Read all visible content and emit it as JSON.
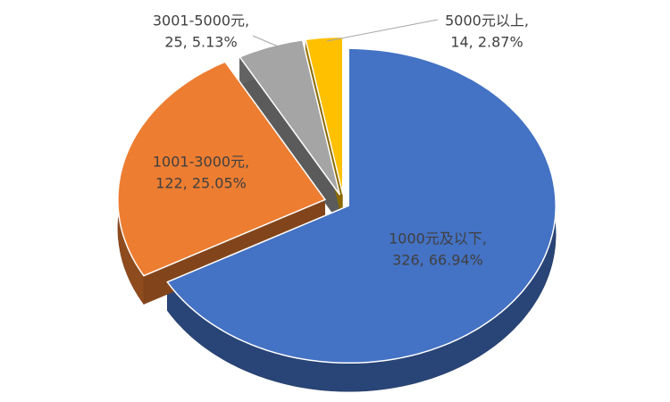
{
  "chart_data": {
    "type": "pie3d",
    "categories": [
      "1000元及以下,",
      "1001-3000元,",
      "3001-5000元,",
      "5000元以上,"
    ],
    "values": [
      326,
      122,
      25,
      14
    ],
    "value_labels": [
      "326, 66.94%",
      "122, 25.05%",
      "25, 5.13%",
      "14, 2.87%"
    ],
    "colors": [
      "#4472c4",
      "#ed7d31",
      "#a5a5a5",
      "#ffc000"
    ]
  }
}
